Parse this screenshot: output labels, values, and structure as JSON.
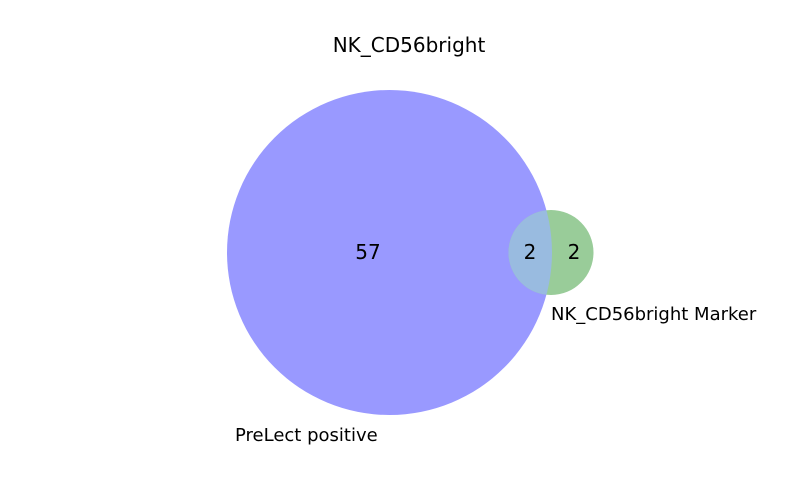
{
  "title": "NK_CD56bright",
  "sets": [
    {
      "name": "PreLect positive",
      "color": "#9999ff"
    },
    {
      "name": "NK_CD56bright Marker",
      "color": "#99cc99"
    }
  ],
  "overlap_color": "#99bbe0",
  "counts": {
    "only_a": "57",
    "both": "2",
    "only_b": "2"
  },
  "chart_data": {
    "type": "venn",
    "title": "NK_CD56bright",
    "sets": [
      "PreLect positive",
      "NK_CD56bright Marker"
    ],
    "regions": [
      {
        "sets": [
          "PreLect positive"
        ],
        "value": 57
      },
      {
        "sets": [
          "PreLect positive",
          "NK_CD56bright Marker"
        ],
        "value": 2
      },
      {
        "sets": [
          "NK_CD56bright Marker"
        ],
        "value": 2
      }
    ]
  }
}
